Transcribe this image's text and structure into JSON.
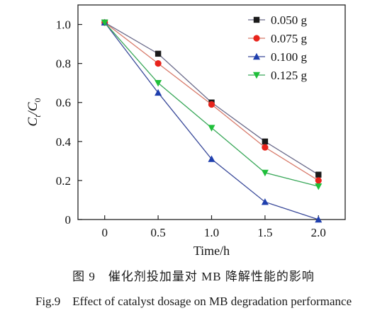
{
  "chart_data": {
    "type": "line",
    "x": [
      0,
      0.5,
      1.0,
      1.5,
      2.0
    ],
    "x_tick_labels": [
      "0",
      "0.5",
      "1.0",
      "1.5",
      "2.0"
    ],
    "y_tick_labels": [
      "0",
      "0.2",
      "0.4",
      "0.6",
      "0.8",
      "1.0"
    ],
    "y_ticks": [
      0,
      0.2,
      0.4,
      0.6,
      0.8,
      1.0
    ],
    "xlim": [
      -0.25,
      2.25
    ],
    "ylim": [
      0,
      1.1
    ],
    "xlabel": "Time/h",
    "ylabel_main": "C",
    "ylabel_sub1": "t",
    "ylabel_sep": "/C",
    "ylabel_sub2": "0",
    "grid": false,
    "legend_position": "top-right",
    "series": [
      {
        "name": "0.050 g",
        "marker": "square",
        "color": "#1a1a1a",
        "line_color": "#6a6a8a",
        "values": [
          1.01,
          0.85,
          0.6,
          0.4,
          0.23
        ]
      },
      {
        "name": "0.075 g",
        "marker": "circle",
        "color": "#e8241c",
        "line_color": "#d87a6a",
        "values": [
          1.01,
          0.8,
          0.59,
          0.37,
          0.2
        ]
      },
      {
        "name": "0.100 g",
        "marker": "triangle-up",
        "color": "#1f3fae",
        "line_color": "#3a4a9a",
        "values": [
          1.01,
          0.65,
          0.31,
          0.09,
          0.0
        ]
      },
      {
        "name": "0.125 g",
        "marker": "triangle-down",
        "color": "#1fbf3a",
        "line_color": "#3aa85a",
        "values": [
          1.01,
          0.7,
          0.47,
          0.24,
          0.17
        ]
      }
    ]
  },
  "caption": {
    "cn": "图 9　催化剂投加量对 MB 降解性能的影响",
    "en": "Fig.9　Effect of catalyst dosage on MB degradation performance"
  }
}
